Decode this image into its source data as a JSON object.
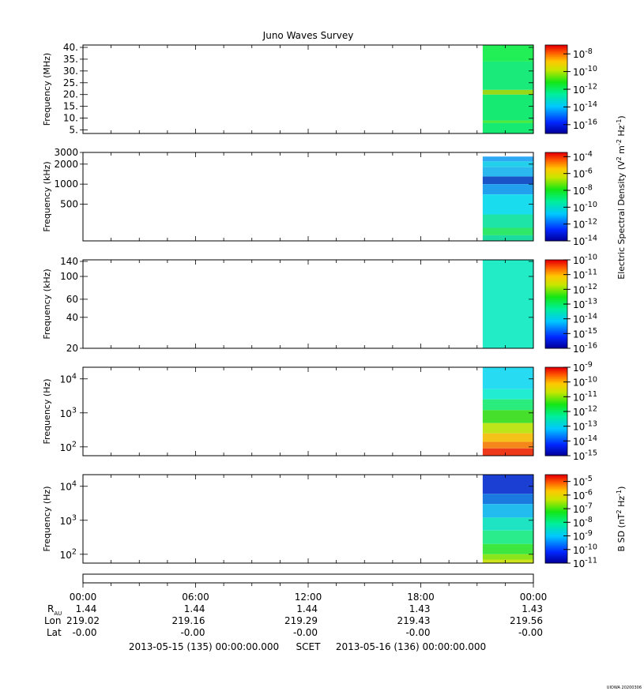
{
  "title": "Juno Waves Survey",
  "footer_credit": "UIOWA 20200306",
  "chart_data": [
    {
      "type": "heatmap",
      "name": "panel-hfwbr",
      "ylabel": "Frequency (MHz)",
      "yscale": "linear",
      "ylim": [
        3.5,
        41
      ],
      "yticks": [
        "5.",
        "10.",
        "15.",
        "20.",
        "25.",
        "30.",
        "35.",
        "40."
      ],
      "ytick_values": [
        5,
        10,
        15,
        20,
        25,
        30,
        35,
        40
      ],
      "data_start_hour": 21.3,
      "colorbar": {
        "type": "log",
        "min_exp": -17,
        "max_exp": -7,
        "tick_exps": [
          -8,
          -10,
          -12,
          -14,
          -16
        ]
      },
      "bands": [
        {
          "from": 3.5,
          "to": 8,
          "color": "#17ea72"
        },
        {
          "from": 8,
          "to": 9,
          "color": "#4eea3c"
        },
        {
          "from": 9,
          "to": 20,
          "color": "#17ea72"
        },
        {
          "from": 20,
          "to": 22,
          "color": "#9ad717"
        },
        {
          "from": 22,
          "to": 34,
          "color": "#19ea79"
        },
        {
          "from": 34,
          "to": 41,
          "color": "#22ee55"
        }
      ]
    },
    {
      "type": "heatmap",
      "name": "panel-lfr-high",
      "ylabel": "Frequency (kHz)",
      "yscale": "log",
      "ylim": [
        140,
        3000
      ],
      "yticks": [
        "3000",
        "2000",
        "1000",
        "500"
      ],
      "ytick_values": [
        3000,
        2000,
        1000,
        500
      ],
      "data_start_hour": 21.3,
      "colorbar": {
        "type": "log",
        "min_exp": -14,
        "max_exp": -3.5,
        "tick_exps": [
          -4,
          -6,
          -8,
          -10,
          -12,
          -14
        ]
      },
      "bands": [
        {
          "from": 2600,
          "to": 3000,
          "color": "#ffffff"
        },
        {
          "from": 2200,
          "to": 2600,
          "color": "#2ea8f5"
        },
        {
          "from": 1800,
          "to": 2200,
          "color": "#22d0ec"
        },
        {
          "from": 1300,
          "to": 1800,
          "color": "#2ab8ee"
        },
        {
          "from": 1000,
          "to": 1300,
          "color": "#1a52c8"
        },
        {
          "from": 700,
          "to": 1000,
          "color": "#22a0ee"
        },
        {
          "from": 350,
          "to": 700,
          "color": "#19dcef"
        },
        {
          "from": 220,
          "to": 350,
          "color": "#1fe4a8"
        },
        {
          "from": 170,
          "to": 220,
          "color": "#2ee86a"
        },
        {
          "from": 140,
          "to": 170,
          "color": "#1cdca0"
        }
      ]
    },
    {
      "type": "heatmap",
      "name": "panel-lfr-mid",
      "ylabel": "Frequency (kHz)",
      "yscale": "log",
      "ylim": [
        20,
        145
      ],
      "yticks": [
        "140",
        "100",
        "60",
        "40",
        "20"
      ],
      "ytick_values": [
        140,
        100,
        60,
        40,
        20
      ],
      "data_start_hour": 21.3,
      "colorbar": {
        "type": "log",
        "min_exp": -16,
        "max_exp": -10,
        "tick_exps": [
          -10,
          -11,
          -12,
          -13,
          -14,
          -15,
          -16
        ]
      },
      "bands": [
        {
          "from": 20,
          "to": 145,
          "color": "#21ecc6"
        }
      ]
    },
    {
      "type": "heatmap",
      "name": "panel-lfr-low-e",
      "ylabel": "Frequency (Hz)",
      "yscale": "log",
      "ylim": [
        55,
        22000
      ],
      "yticks": [
        "10^4",
        "10^3",
        "10^2"
      ],
      "ytick_values": [
        10000,
        1000,
        100
      ],
      "data_start_hour": 21.3,
      "colorbar": {
        "type": "log",
        "min_exp": -15,
        "max_exp": -9,
        "tick_exps": [
          -9,
          -10,
          -11,
          -12,
          -13,
          -14,
          -15
        ]
      },
      "bands": [
        {
          "from": 5000,
          "to": 22000,
          "color": "#27dcf2"
        },
        {
          "from": 2500,
          "to": 5000,
          "color": "#22ecd2"
        },
        {
          "from": 1200,
          "to": 2500,
          "color": "#2aec7c"
        },
        {
          "from": 500,
          "to": 1200,
          "color": "#46e02c"
        },
        {
          "from": 250,
          "to": 500,
          "color": "#bee41a"
        },
        {
          "from": 140,
          "to": 250,
          "color": "#f5c21a"
        },
        {
          "from": 90,
          "to": 140,
          "color": "#f5861c"
        },
        {
          "from": 55,
          "to": 90,
          "color": "#ee3a1a"
        }
      ]
    },
    {
      "type": "heatmap",
      "name": "panel-lfr-low-b",
      "ylabel": "Frequency (Hz)",
      "yscale": "log",
      "ylim": [
        55,
        22000
      ],
      "yticks": [
        "10^4",
        "10^3",
        "10^2"
      ],
      "ytick_values": [
        10000,
        1000,
        100
      ],
      "data_start_hour": 21.3,
      "colorbar": {
        "type": "log",
        "min_exp": -11,
        "max_exp": -4.5,
        "tick_exps": [
          -5,
          -6,
          -7,
          -8,
          -9,
          -10,
          -11
        ]
      },
      "bands": [
        {
          "from": 6000,
          "to": 22000,
          "color": "#1a3fd2"
        },
        {
          "from": 3000,
          "to": 6000,
          "color": "#1a7ae0"
        },
        {
          "from": 1200,
          "to": 3000,
          "color": "#22bcef"
        },
        {
          "from": 500,
          "to": 1200,
          "color": "#1fe4c4"
        },
        {
          "from": 200,
          "to": 500,
          "color": "#2aec8c"
        },
        {
          "from": 100,
          "to": 200,
          "color": "#3ee640"
        },
        {
          "from": 70,
          "to": 100,
          "color": "#8ae51c"
        },
        {
          "from": 55,
          "to": 70,
          "color": "#cce31a"
        }
      ]
    }
  ],
  "colorbar_labels": [
    {
      "text": "Electric Spectral Density (V",
      "sup1": "2",
      "mid": " m",
      "sup2": "-2",
      "mid2": " Hz",
      "sup3": "-1",
      "end": ")"
    },
    {
      "text": "B SD (nT",
      "sup1": "2",
      "mid": " Hz",
      "sup2": "-1",
      "end": ")"
    }
  ],
  "time_axis": {
    "ticks": [
      {
        "time": "00:00",
        "rau": "1.44",
        "lon": "219.02",
        "lat": "-0.00"
      },
      {
        "time": "06:00",
        "rau": "1.44",
        "lon": "219.16",
        "lat": "-0.00"
      },
      {
        "time": "12:00",
        "rau": "1.44",
        "lon": "219.29",
        "lat": "-0.00"
      },
      {
        "time": "18:00",
        "rau": "1.43",
        "lon": "219.43",
        "lat": "-0.00"
      },
      {
        "time": "00:00",
        "rau": "1.43",
        "lon": "219.56",
        "lat": "-0.00"
      }
    ],
    "row_labels": {
      "rau": "R",
      "rau_sub": "AU",
      "lon": "Lon",
      "lat": "Lat"
    },
    "footer_start": "2013-05-15 (135) 00:00:00.000",
    "footer_mid": "SCET",
    "footer_end": "2013-05-16 (136) 00:00:00.000"
  }
}
